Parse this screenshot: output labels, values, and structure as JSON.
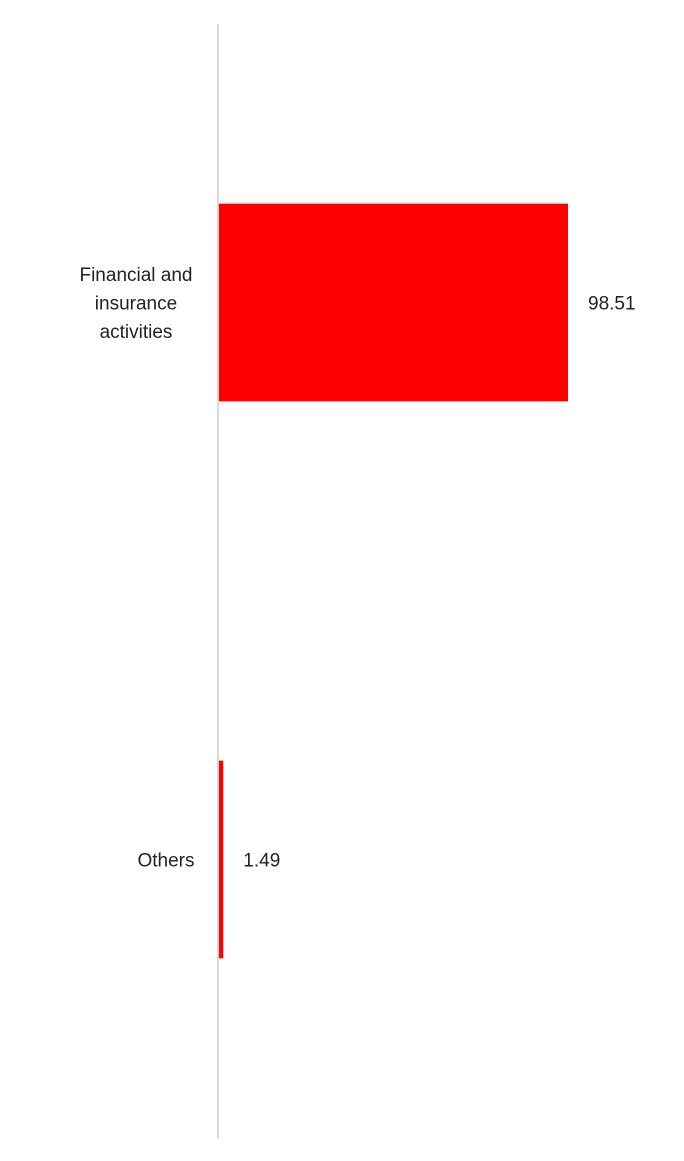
{
  "chart_data": {
    "type": "bar",
    "orientation": "horizontal",
    "categories": [
      "Financial and insurance activities",
      "Others"
    ],
    "category_label_lines": [
      [
        "Financial and",
        "insurance",
        "activities"
      ],
      [
        "Others"
      ]
    ],
    "values": [
      98.51,
      1.49
    ],
    "value_labels": [
      "98.51",
      "1.49"
    ],
    "title": "",
    "xlabel": "",
    "ylabel": "",
    "xlim": [
      0,
      100
    ],
    "grid": false,
    "legend": "none",
    "colors": {
      "bar": "#ff0000",
      "axis": "#d9d9d9",
      "text": "#222222"
    }
  }
}
